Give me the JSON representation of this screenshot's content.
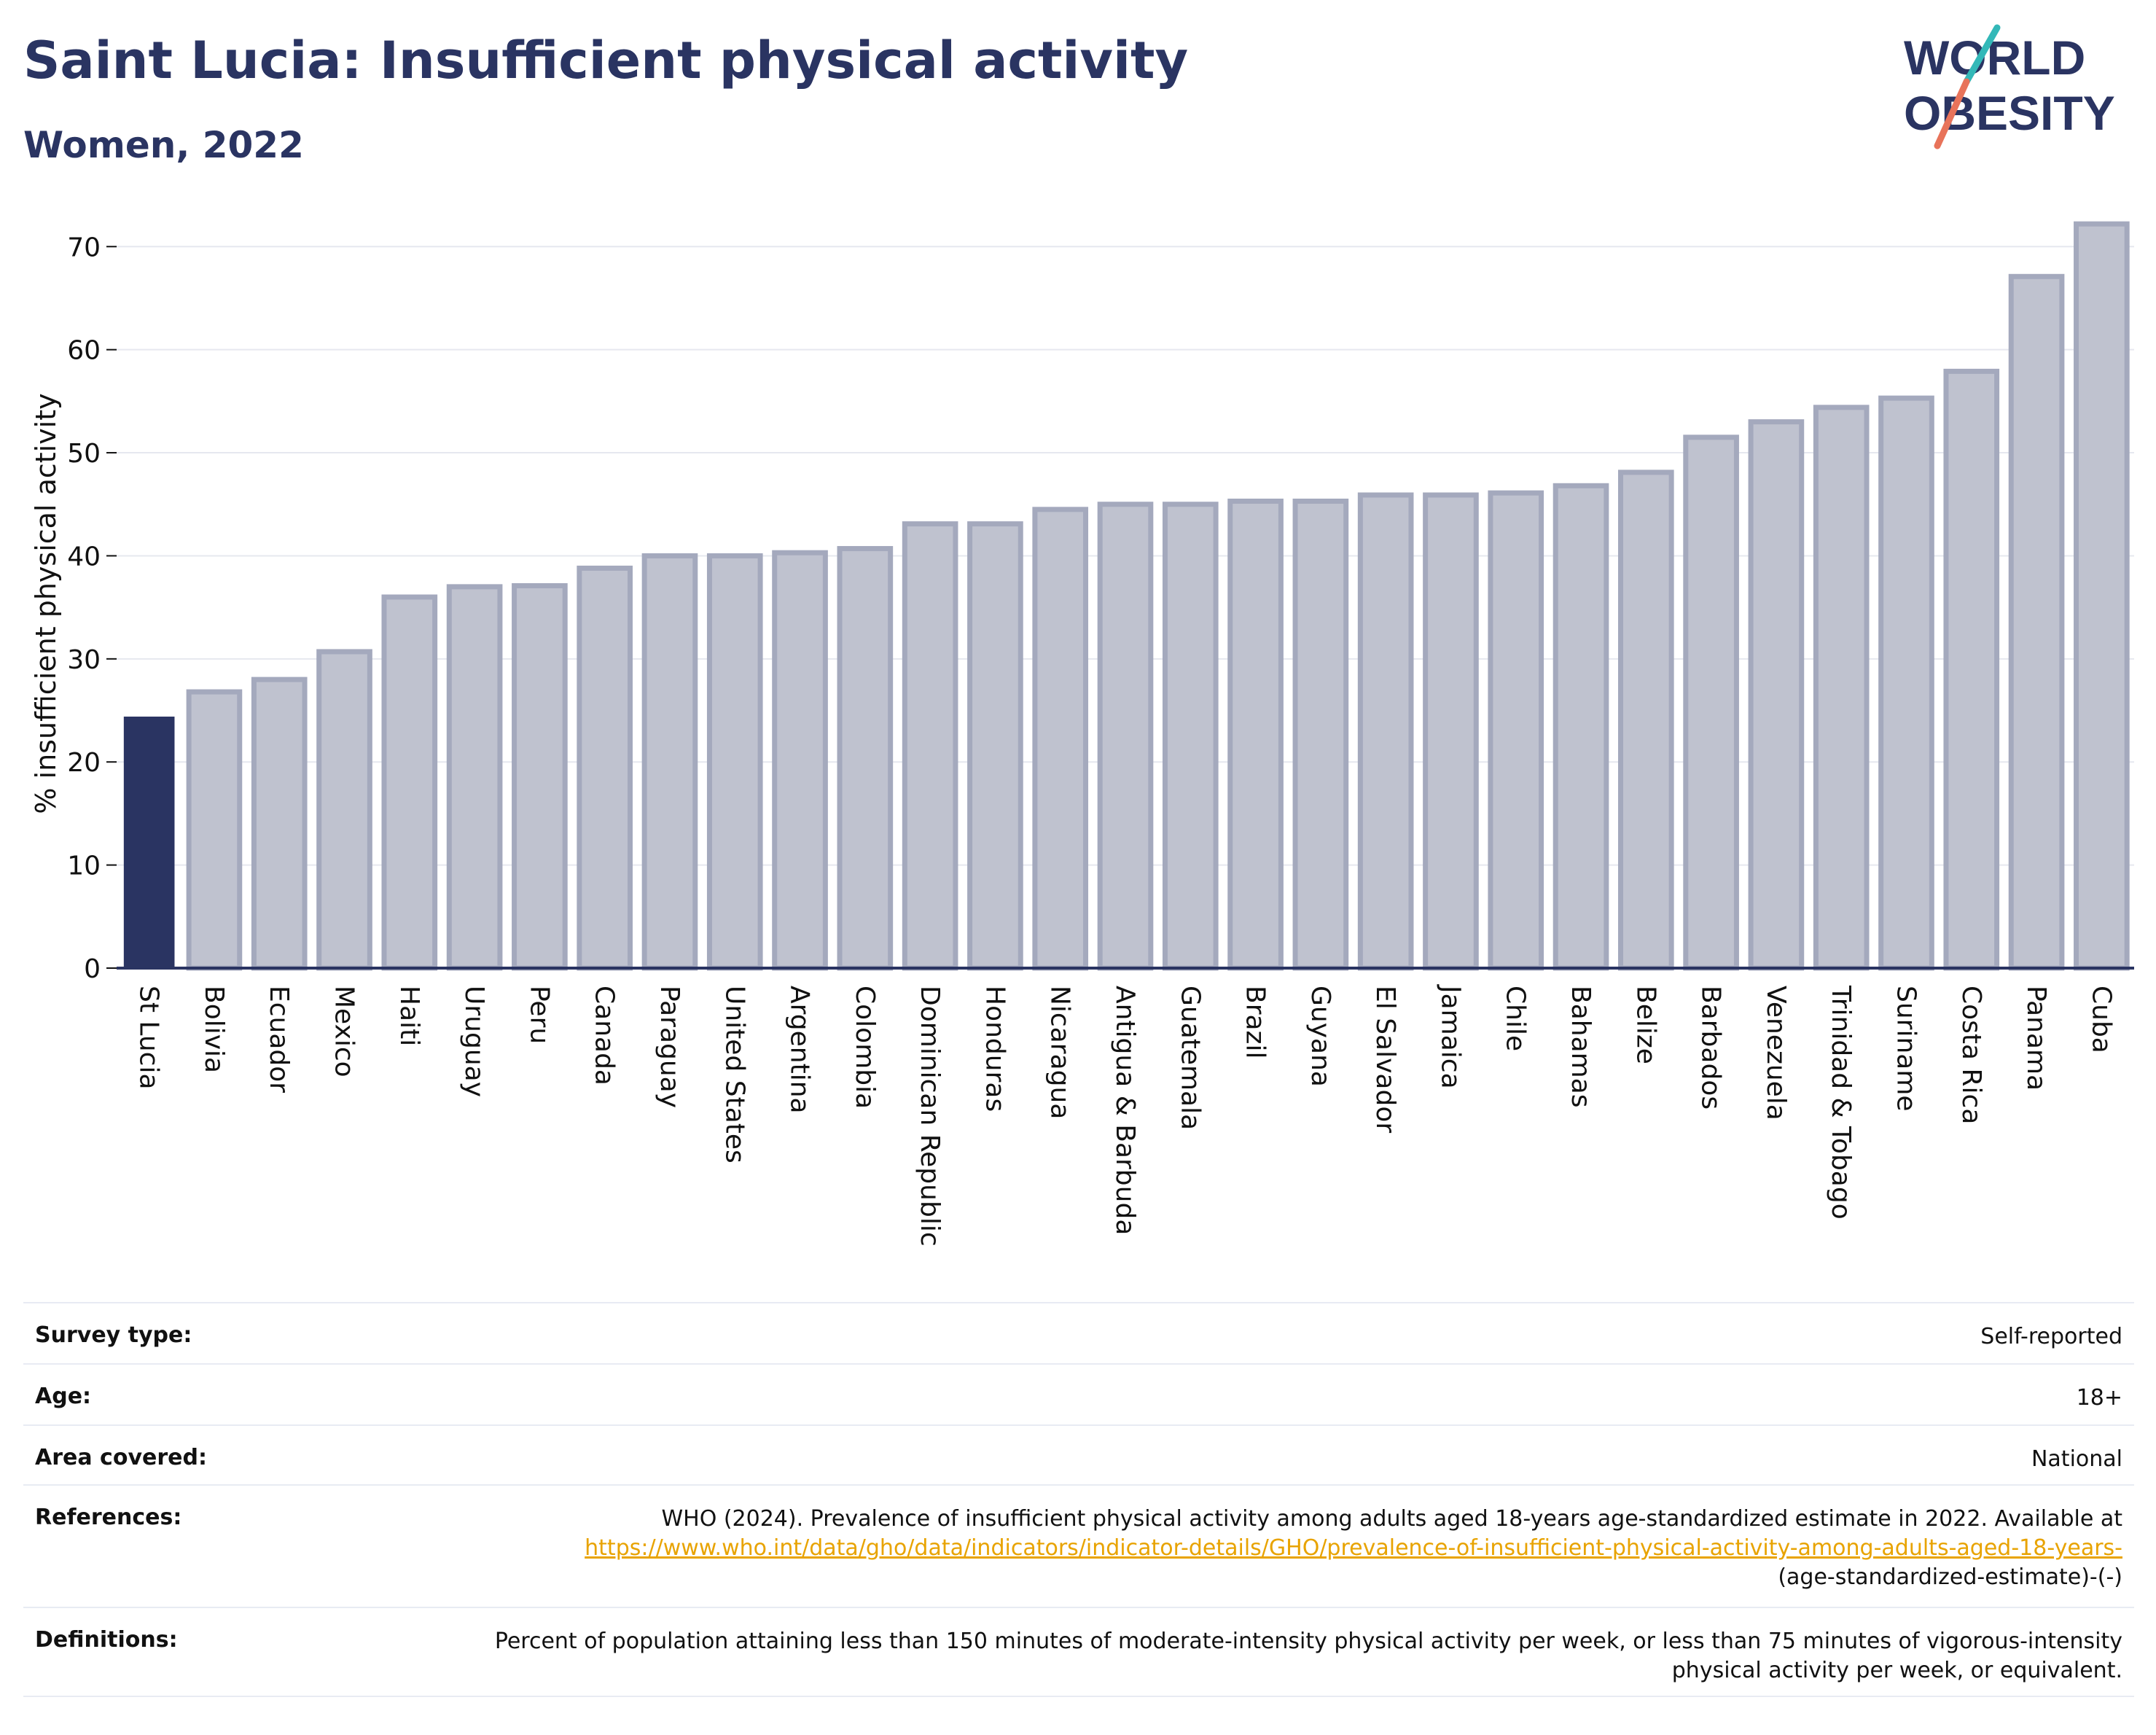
{
  "header": {
    "title": "Saint Lucia: Insufficient physical activity",
    "subtitle": "Women, 2022",
    "logo_line1": "WORLD",
    "logo_line2": "OBESITY"
  },
  "colors": {
    "highlight_bar": "#2a3462",
    "other_bar": "#bfc2cf",
    "other_bar_stroke": "#a4a9bd",
    "text": "#2a3462",
    "link": "#e8a300",
    "logo_teal": "#33b8b8",
    "logo_coral": "#e8735a"
  },
  "chart_data": {
    "type": "bar",
    "ylabel": "% insufficient physical activity",
    "ylim": [
      0,
      72
    ],
    "yticks": [
      0,
      10,
      20,
      30,
      40,
      50,
      60,
      70
    ],
    "grid": true,
    "highlight": "St Lucia",
    "categories": [
      "St Lucia",
      "Bolivia",
      "Ecuador",
      "Mexico",
      "Haiti",
      "Uruguay",
      "Peru",
      "Canada",
      "Paraguay",
      "United States",
      "Argentina",
      "Colombia",
      "Dominican Republic",
      "Honduras",
      "Nicaragua",
      "Antigua & Barbuda",
      "Guatemala",
      "Brazil",
      "Guyana",
      "El Salvador",
      "Jamaica",
      "Chile",
      "Bahamas",
      "Belize",
      "Barbados",
      "Venezuela",
      "Trinidad & Tobago",
      "Suriname",
      "Costa Rica",
      "Panama",
      "Cuba"
    ],
    "values": [
      24.4,
      26.8,
      28.0,
      30.7,
      36.0,
      37.0,
      37.1,
      38.8,
      40.0,
      40.0,
      40.3,
      40.7,
      43.1,
      43.1,
      44.5,
      45.0,
      45.0,
      45.3,
      45.3,
      45.9,
      45.9,
      46.1,
      46.8,
      48.1,
      51.5,
      53.0,
      54.4,
      55.3,
      57.9,
      67.1,
      72.2
    ]
  },
  "meta": [
    {
      "label": "Survey type:",
      "value": "Self-reported"
    },
    {
      "label": "Age:",
      "value": "18+"
    },
    {
      "label": "Area covered:",
      "value": "National"
    },
    {
      "label": "References:",
      "value_pre": "WHO (2024). Prevalence of insufficient physical activity among adults aged 18-years age-standardized estimate in 2022. Available at",
      "value_link": "https://www.who.int/data/gho/data/indicators/indicator-details/GHO/prevalence-of-insufficient-physical-activity-among-adults-aged-18-years-",
      "value_post": "(age-standardized-estimate)-(-)"
    },
    {
      "label": "Definitions:",
      "value": "Percent of population attaining less than 150 minutes of moderate-intensity physical activity per week, or less than 75 minutes of vigorous-intensity physical activity per week, or equivalent."
    }
  ]
}
